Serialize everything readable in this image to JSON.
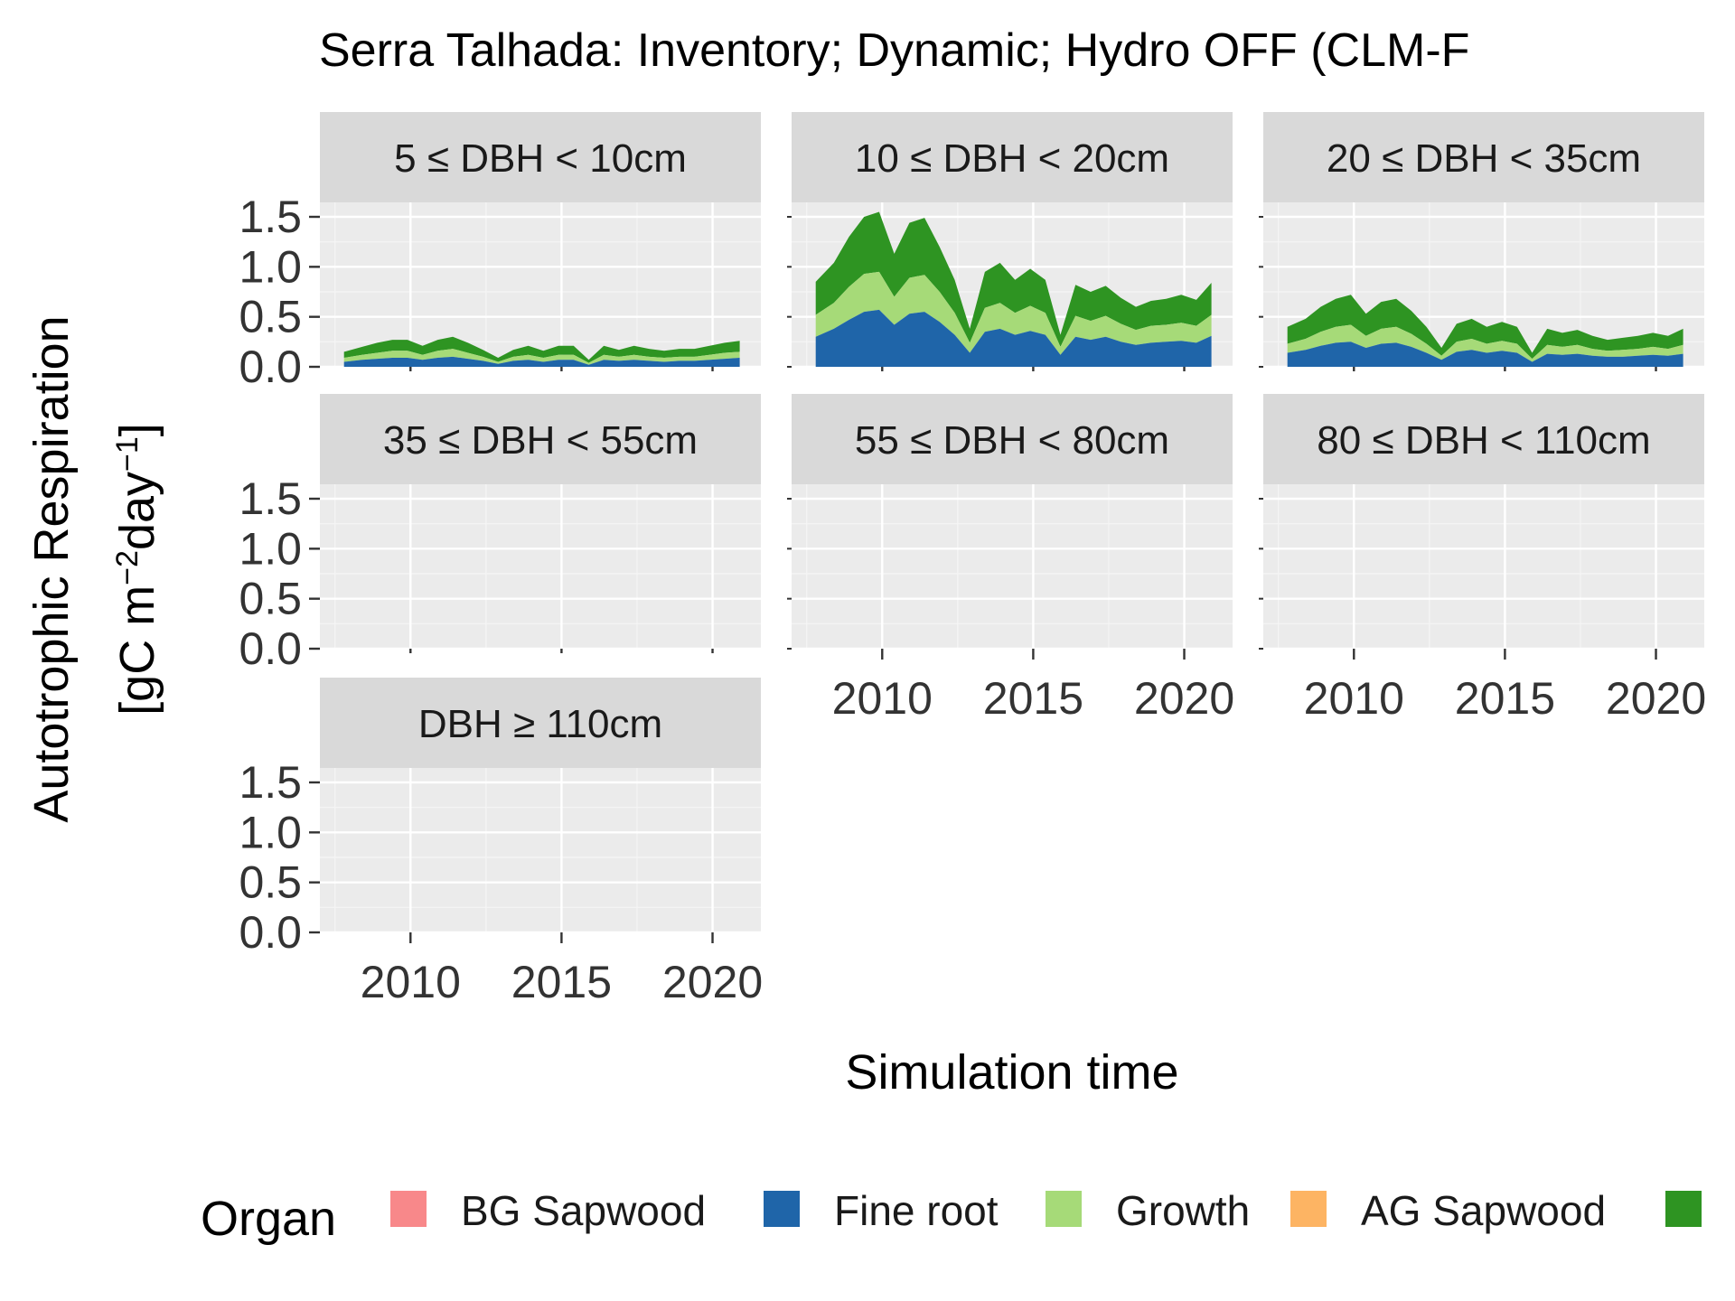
{
  "chart_data": {
    "type": "area",
    "title": "Serra Talhada: Inventory; Dynamic; Hydro OFF (CLM-F",
    "xlabel": "Simulation time",
    "ylabel": [
      "Autotrophic Respiration",
      "[gC m",
      "−2",
      "day",
      "−1",
      "]"
    ],
    "x_ticks": [
      2010,
      2015,
      2020
    ],
    "y_ticks": [
      "0.0",
      "0.5",
      "1.0",
      "1.5"
    ],
    "xlim": [
      2007.0,
      2021.6
    ],
    "ylim": [
      0.0,
      1.5
    ],
    "stacked": true,
    "legend": {
      "title": "Organ",
      "position": "bottom",
      "entries": [
        {
          "name": "BG Sapwood",
          "color": "#F8888A"
        },
        {
          "name": "Fine root",
          "color": "#1F65A9"
        },
        {
          "name": "Growth",
          "color": "#A6DA78"
        },
        {
          "name": "AG Sapwood",
          "color": "#FDB463"
        },
        {
          "name": "",
          "color": "#2E9422"
        }
      ]
    },
    "facets": [
      {
        "label": "5 ≤ DBH < 10cm",
        "x": [
          2007.8,
          2008.4,
          2008.9,
          2009.4,
          2009.9,
          2010.4,
          2010.9,
          2011.4,
          2011.9,
          2012.4,
          2012.9,
          2013.4,
          2013.9,
          2014.4,
          2014.9,
          2015.4,
          2015.9,
          2016.4,
          2016.9,
          2017.4,
          2017.9,
          2018.4,
          2018.9,
          2019.4,
          2019.9,
          2020.4,
          2020.9
        ],
        "series": [
          {
            "name": "Fine root",
            "values": [
              0.05,
              0.07,
              0.08,
              0.09,
              0.09,
              0.07,
              0.09,
              0.1,
              0.08,
              0.06,
              0.03,
              0.06,
              0.07,
              0.05,
              0.07,
              0.07,
              0.02,
              0.07,
              0.06,
              0.07,
              0.06,
              0.05,
              0.06,
              0.06,
              0.07,
              0.08,
              0.09
            ]
          },
          {
            "name": "Growth",
            "values": [
              0.04,
              0.05,
              0.06,
              0.07,
              0.07,
              0.05,
              0.07,
              0.08,
              0.06,
              0.04,
              0.02,
              0.04,
              0.05,
              0.04,
              0.05,
              0.05,
              0.02,
              0.05,
              0.04,
              0.05,
              0.04,
              0.04,
              0.04,
              0.04,
              0.05,
              0.06,
              0.06
            ]
          },
          {
            "name": "",
            "values": [
              0.06,
              0.08,
              0.1,
              0.11,
              0.11,
              0.09,
              0.11,
              0.12,
              0.1,
              0.07,
              0.04,
              0.07,
              0.09,
              0.07,
              0.09,
              0.09,
              0.03,
              0.09,
              0.07,
              0.09,
              0.08,
              0.07,
              0.08,
              0.08,
              0.09,
              0.1,
              0.11
            ]
          }
        ]
      },
      {
        "label": "10 ≤ DBH < 20cm",
        "x": [
          2007.8,
          2008.4,
          2008.9,
          2009.4,
          2009.9,
          2010.4,
          2010.9,
          2011.4,
          2011.9,
          2012.4,
          2012.9,
          2013.4,
          2013.9,
          2014.4,
          2014.9,
          2015.4,
          2015.9,
          2016.4,
          2016.9,
          2017.4,
          2017.9,
          2018.4,
          2018.9,
          2019.4,
          2019.9,
          2020.4,
          2020.9
        ],
        "series": [
          {
            "name": "Fine root",
            "values": [
              0.3,
              0.38,
              0.47,
              0.55,
              0.57,
              0.42,
              0.53,
              0.55,
              0.45,
              0.32,
              0.14,
              0.35,
              0.38,
              0.32,
              0.36,
              0.32,
              0.12,
              0.3,
              0.27,
              0.3,
              0.25,
              0.22,
              0.24,
              0.25,
              0.26,
              0.24,
              0.31
            ]
          },
          {
            "name": "Growth",
            "values": [
              0.22,
              0.26,
              0.33,
              0.38,
              0.38,
              0.28,
              0.36,
              0.37,
              0.3,
              0.22,
              0.1,
              0.24,
              0.26,
              0.22,
              0.25,
              0.22,
              0.08,
              0.21,
              0.19,
              0.21,
              0.18,
              0.15,
              0.17,
              0.17,
              0.18,
              0.17,
              0.21
            ]
          },
          {
            "name": "",
            "values": [
              0.33,
              0.4,
              0.5,
              0.57,
              0.6,
              0.43,
              0.55,
              0.57,
              0.45,
              0.33,
              0.14,
              0.36,
              0.4,
              0.33,
              0.37,
              0.33,
              0.12,
              0.31,
              0.29,
              0.3,
              0.26,
              0.23,
              0.25,
              0.26,
              0.28,
              0.26,
              0.32
            ]
          }
        ]
      },
      {
        "label": "20 ≤ DBH < 35cm",
        "x": [
          2007.8,
          2008.4,
          2008.9,
          2009.4,
          2009.9,
          2010.4,
          2010.9,
          2011.4,
          2011.9,
          2012.4,
          2012.9,
          2013.4,
          2013.9,
          2014.4,
          2014.9,
          2015.4,
          2015.9,
          2016.4,
          2016.9,
          2017.4,
          2017.9,
          2018.4,
          2018.9,
          2019.4,
          2019.9,
          2020.4,
          2020.9
        ],
        "series": [
          {
            "name": "Fine root",
            "values": [
              0.14,
              0.17,
              0.21,
              0.24,
              0.25,
              0.19,
              0.23,
              0.24,
              0.2,
              0.14,
              0.07,
              0.15,
              0.17,
              0.14,
              0.16,
              0.14,
              0.05,
              0.13,
              0.12,
              0.13,
              0.11,
              0.1,
              0.1,
              0.11,
              0.12,
              0.11,
              0.13
            ]
          },
          {
            "name": "Growth",
            "values": [
              0.09,
              0.11,
              0.14,
              0.16,
              0.17,
              0.12,
              0.15,
              0.16,
              0.13,
              0.09,
              0.04,
              0.1,
              0.11,
              0.09,
              0.1,
              0.09,
              0.03,
              0.09,
              0.08,
              0.09,
              0.07,
              0.06,
              0.07,
              0.07,
              0.08,
              0.07,
              0.09
            ]
          },
          {
            "name": "",
            "values": [
              0.17,
              0.2,
              0.25,
              0.28,
              0.3,
              0.22,
              0.27,
              0.28,
              0.23,
              0.17,
              0.08,
              0.18,
              0.2,
              0.17,
              0.19,
              0.17,
              0.06,
              0.16,
              0.14,
              0.15,
              0.13,
              0.11,
              0.12,
              0.13,
              0.14,
              0.13,
              0.16
            ]
          }
        ]
      },
      {
        "label": "35 ≤ DBH < 55cm",
        "x": [],
        "series": []
      },
      {
        "label": "55 ≤ DBH < 80cm",
        "x": [],
        "series": []
      },
      {
        "label": "80 ≤ DBH < 110cm",
        "x": [],
        "series": []
      },
      {
        "label": "DBH ≥ 110cm",
        "x": [],
        "series": []
      }
    ]
  }
}
